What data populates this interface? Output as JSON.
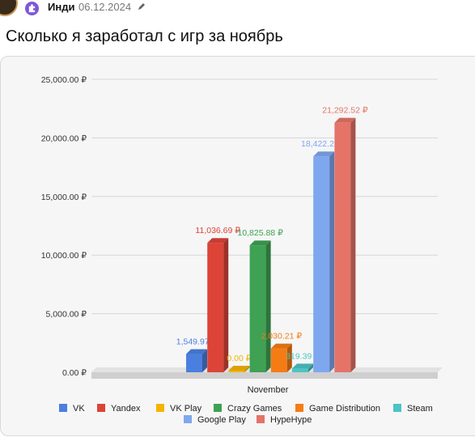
{
  "post": {
    "author": "Инди",
    "date": "06.12.2024",
    "title": "Сколько я заработал с игр за ноябрь",
    "icons": {
      "avatar": "user-avatar",
      "badge": "puzzle-badge-icon",
      "edit": "pencil-icon"
    }
  },
  "chart_data": {
    "type": "bar",
    "categories": [
      "November"
    ],
    "series": [
      {
        "name": "VK",
        "values": [
          1549.97
        ],
        "label": "1,549.97 ₽",
        "color": "#4a7fe0"
      },
      {
        "name": "Yandex",
        "values": [
          11036.69
        ],
        "label": "11,036.69 ₽",
        "color": "#dc4437"
      },
      {
        "name": "VK Play",
        "values": [
          0.0
        ],
        "label": "0.00 ₽",
        "color": "#f4b400"
      },
      {
        "name": "Crazy Games",
        "values": [
          10825.88
        ],
        "label": "10,825.88 ₽",
        "color": "#3ea153"
      },
      {
        "name": "Game Distribution",
        "values": [
          2030.21
        ],
        "label": "2,030.21 ₽",
        "color": "#f57c14"
      },
      {
        "name": "Steam",
        "values": [
          319.39
        ],
        "label": "319.39 ₽",
        "color": "#4cc4c4"
      },
      {
        "name": "Google Play",
        "values": [
          18422.29
        ],
        "label": "18,422.29 ₽",
        "color": "#7fa7f0"
      },
      {
        "name": "HypeHype",
        "values": [
          21292.52
        ],
        "label": "21,292.52 ₽",
        "color": "#e57368"
      }
    ],
    "ylim": [
      0,
      25000
    ],
    "yticks": [
      "0.00 ₽",
      "5,000.00 ₽",
      "10,000.00 ₽",
      "15,000.00 ₽",
      "20,000.00 ₽",
      "25,000.00 ₽"
    ],
    "ytick_values": [
      0,
      5000,
      10000,
      15000,
      20000,
      25000
    ],
    "xlabel": "",
    "ylabel": "",
    "grid": true,
    "legend": "bottom"
  }
}
